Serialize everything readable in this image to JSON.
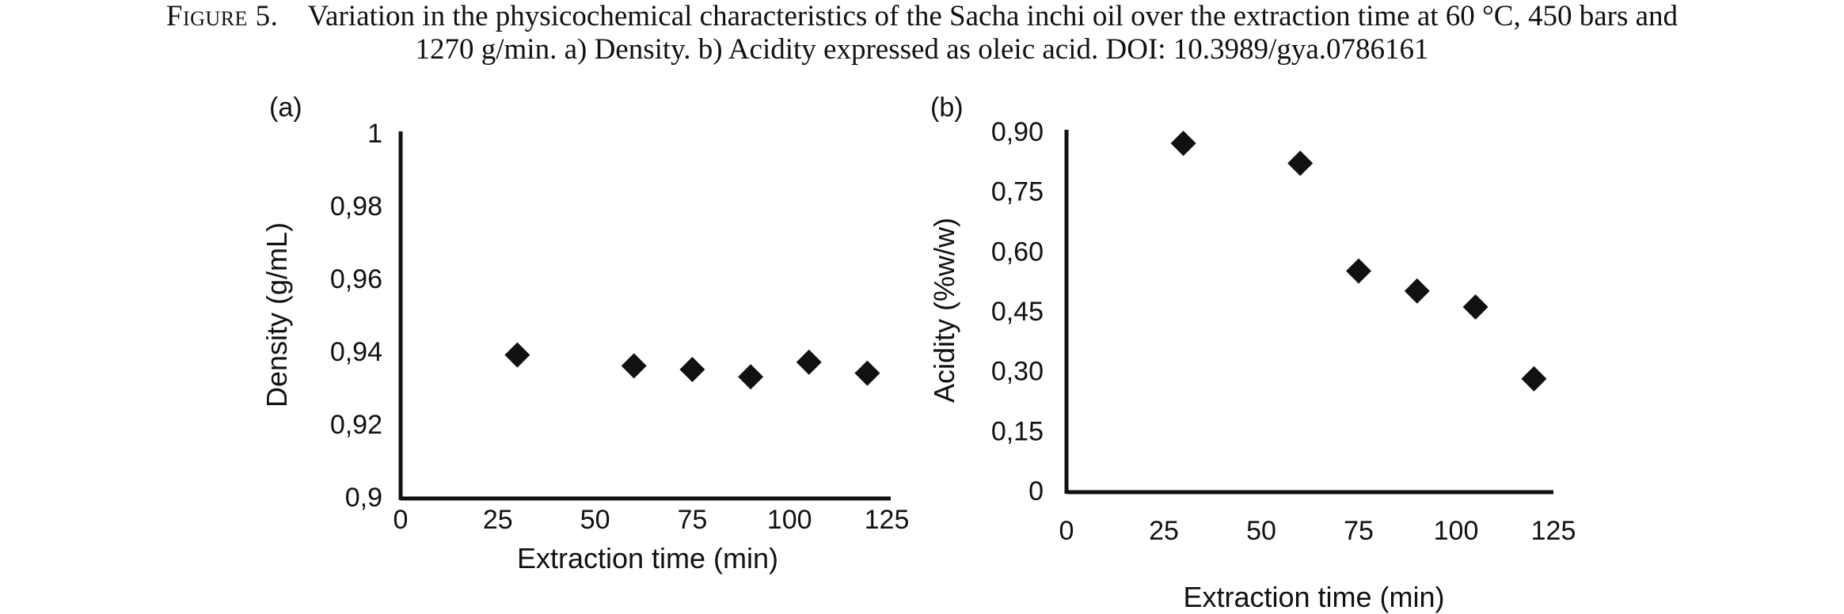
{
  "caption": {
    "lead": "Figure 5.",
    "line1": "Variation in the physicochemical characteristics of the Sacha inchi oil over the extraction time at 60 °C, 450 bars and",
    "line2": "1270 g/min. a) Density. b) Acidity expressed as oleic acid. DOI: 10.3989/gya.0786161"
  },
  "chart_data": [
    {
      "type": "scatter",
      "panel": "(a)",
      "xlabel": "Extraction time (min)",
      "ylabel": "Density (g/mL)",
      "xlim": [
        0,
        125
      ],
      "ylim": [
        0.9,
        1.0
      ],
      "xticks": [
        0,
        25,
        50,
        75,
        100,
        125
      ],
      "xtick_labels": [
        "0",
        "25",
        "50",
        "75",
        "100",
        "125"
      ],
      "yticks": [
        0.9,
        0.92,
        0.94,
        0.96,
        0.98,
        1.0
      ],
      "ytick_labels": [
        "0,9",
        "0,92",
        "0,94",
        "0,96",
        "0,98",
        "1"
      ],
      "grid": false,
      "marker": "diamond",
      "color": "#111111",
      "x": [
        30,
        60,
        75,
        90,
        105,
        120
      ],
      "y": [
        0.939,
        0.936,
        0.935,
        0.933,
        0.937,
        0.934
      ]
    },
    {
      "type": "scatter",
      "panel": "(b)",
      "xlabel": "Extraction time (min)",
      "ylabel": "Acidity (%w/w)",
      "xlim": [
        0,
        125
      ],
      "ylim": [
        0,
        0.9
      ],
      "xticks": [
        0,
        25,
        50,
        75,
        100,
        125
      ],
      "xtick_labels": [
        "0",
        "25",
        "50",
        "75",
        "100",
        "125"
      ],
      "yticks": [
        0,
        0.15,
        0.3,
        0.45,
        0.6,
        0.75,
        0.9
      ],
      "ytick_labels": [
        "0",
        "0,15",
        "0,30",
        "0,45",
        "0,60",
        "0,75",
        "0,90"
      ],
      "grid": false,
      "marker": "diamond",
      "color": "#111111",
      "x": [
        30,
        60,
        75,
        90,
        105,
        120
      ],
      "y": [
        0.87,
        0.82,
        0.55,
        0.5,
        0.46,
        0.28
      ]
    }
  ]
}
